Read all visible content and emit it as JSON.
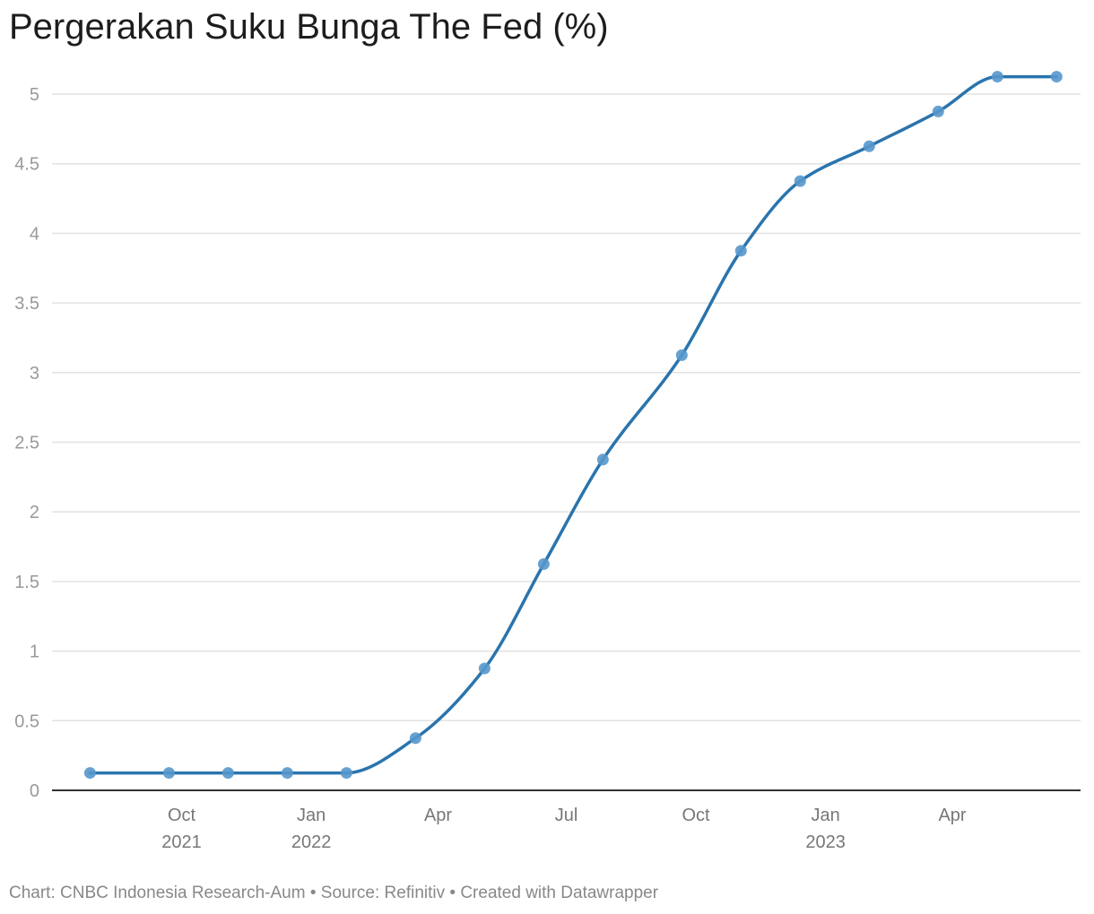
{
  "title": "Pergerakan Suku Bunga The Fed (%)",
  "footer": {
    "prefix": "Chart: ",
    "author": "CNBC Indonesia Research-Aum",
    "sep1": " • ",
    "source_label": "Source: ",
    "source": "Refinitiv",
    "sep2": " • ",
    "created": "Created with ",
    "tool": "Datawrapper"
  },
  "colors": {
    "line": "#2a74ad",
    "dot": "#5697cc",
    "grid": "#e2e2e2",
    "axis": "#333333"
  },
  "chart_data": {
    "type": "line",
    "title": "Pergerakan Suku Bunga The Fed (%)",
    "xlabel": "",
    "ylabel": "",
    "ylim": [
      0,
      5
    ],
    "xlim": [
      "2021-07-01",
      "2023-07-01"
    ],
    "grid": true,
    "y_ticks": [
      {
        "value": 0,
        "label": "0"
      },
      {
        "value": 0.5,
        "label": "0.5"
      },
      {
        "value": 1,
        "label": "1"
      },
      {
        "value": 1.5,
        "label": "1.5"
      },
      {
        "value": 2,
        "label": "2"
      },
      {
        "value": 2.5,
        "label": "2.5"
      },
      {
        "value": 3,
        "label": "3"
      },
      {
        "value": 3.5,
        "label": "3.5"
      },
      {
        "value": 4,
        "label": "4"
      },
      {
        "value": 4.5,
        "label": "4.5"
      },
      {
        "value": 5,
        "label": "5"
      }
    ],
    "x_ticks": [
      {
        "date": "2021-10-01",
        "label": "Oct",
        "sublabel": "2021"
      },
      {
        "date": "2022-01-01",
        "label": "Jan",
        "sublabel": "2022"
      },
      {
        "date": "2022-04-01",
        "label": "Apr",
        "sublabel": ""
      },
      {
        "date": "2022-07-01",
        "label": "Jul",
        "sublabel": ""
      },
      {
        "date": "2022-10-01",
        "label": "Oct",
        "sublabel": ""
      },
      {
        "date": "2023-01-01",
        "label": "Jan",
        "sublabel": "2023"
      },
      {
        "date": "2023-04-01",
        "label": "Apr",
        "sublabel": ""
      }
    ],
    "series": [
      {
        "points": [
          {
            "x": "2021-07-28",
            "y": 0.125
          },
          {
            "x": "2021-09-22",
            "y": 0.125
          },
          {
            "x": "2021-11-03",
            "y": 0.125
          },
          {
            "x": "2021-12-15",
            "y": 0.125
          },
          {
            "x": "2022-01-26",
            "y": 0.125
          },
          {
            "x": "2022-03-16",
            "y": 0.375
          },
          {
            "x": "2022-05-04",
            "y": 0.875
          },
          {
            "x": "2022-06-15",
            "y": 1.625
          },
          {
            "x": "2022-07-27",
            "y": 2.375
          },
          {
            "x": "2022-09-21",
            "y": 3.125
          },
          {
            "x": "2022-11-02",
            "y": 3.875
          },
          {
            "x": "2022-12-14",
            "y": 4.375
          },
          {
            "x": "2023-02-01",
            "y": 4.625
          },
          {
            "x": "2023-03-22",
            "y": 4.875
          },
          {
            "x": "2023-05-03",
            "y": 5.125
          },
          {
            "x": "2023-06-14",
            "y": 5.125
          }
        ]
      }
    ]
  }
}
